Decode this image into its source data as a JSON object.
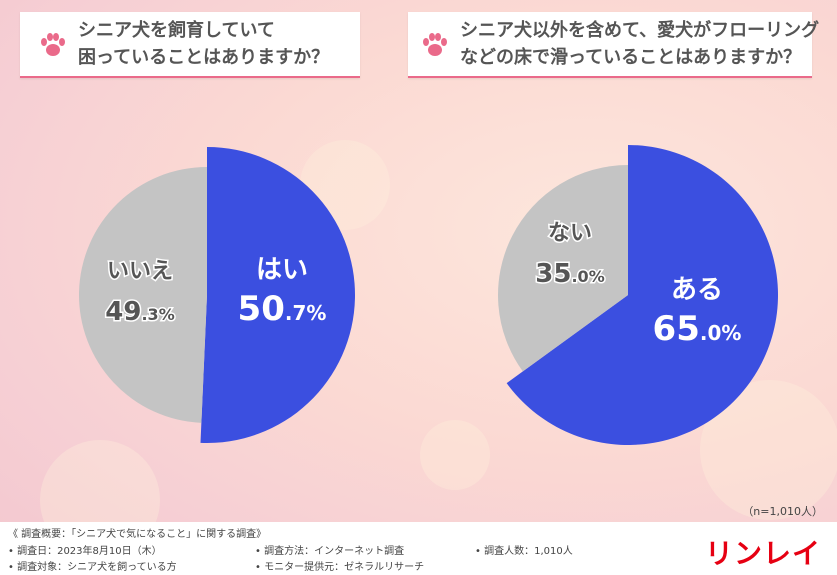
{
  "questions": [
    "シニア犬を飼育していて\n困っていることはありますか？",
    "シニア犬以外を含めて、愛犬がフローリング\nなどの床で滑っていることはありますか？"
  ],
  "chart_data": [
    {
      "type": "pie",
      "title": "シニア犬を飼育していて困っていることはありますか？",
      "slices": [
        {
          "label": "はい",
          "value": 50.7,
          "color": "#3b4fe0"
        },
        {
          "label": "いいえ",
          "value": 49.3,
          "color": "#c4c4c4"
        }
      ]
    },
    {
      "type": "pie",
      "title": "シニア犬以外を含めて、愛犬がフローリングなどの床で滑っていることはありますか？",
      "slices": [
        {
          "label": "ある",
          "value": 65.0,
          "color": "#3b4fe0"
        },
        {
          "label": "ない",
          "value": 35.0,
          "color": "#c4c4c4"
        }
      ]
    }
  ],
  "sample_size": "（n=1,010人）",
  "footer": {
    "overview": "《 調査概要：「シニア犬で気になること」に関する調査》",
    "date": "• 調査日：2023年8月10日（木）",
    "method": "• 調査方法：インターネット調査",
    "count": "• 調査人数：1,010人",
    "target": "• 調査対象：シニア犬を飼っている方",
    "provider": "• モニター提供元：ゼネラルリサーチ",
    "logo": "リンレイ"
  },
  "colors": {
    "accent": "#3b4fe0",
    "grey": "#c4c4c4",
    "paw": "#ea6a8a",
    "logo": "#e60012"
  }
}
